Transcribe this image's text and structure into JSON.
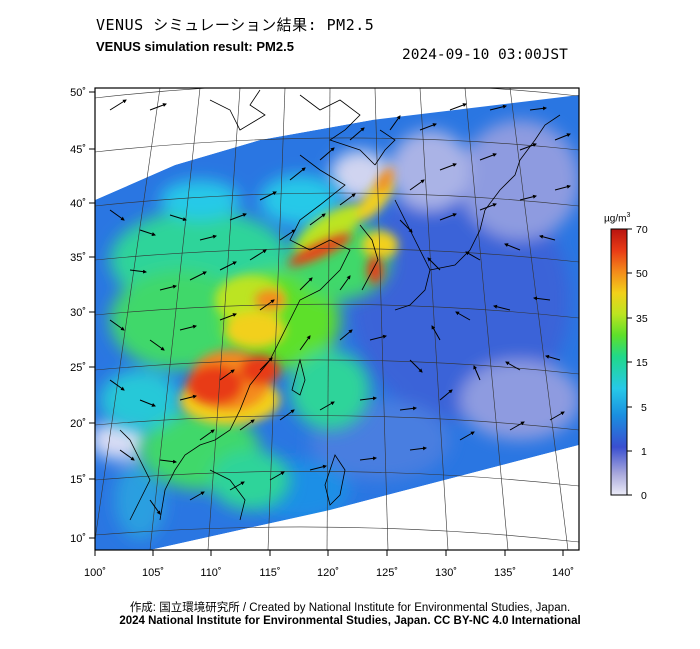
{
  "header": {
    "title_jp": "VENUS シミュレーション結果: PM2.5",
    "title_en": "VENUS simulation result: PM2.5",
    "timestamp": "2024-09-10 03:00JST"
  },
  "map": {
    "lon_ticks": [
      "100˚",
      "105˚",
      "110˚",
      "115˚",
      "120˚",
      "125˚",
      "130˚",
      "135˚",
      "140˚"
    ],
    "lat_ticks": [
      "50˚",
      "45˚",
      "40˚",
      "35˚",
      "30˚",
      "25˚",
      "20˚",
      "15˚",
      "10˚"
    ],
    "lon_range": [
      100,
      141
    ],
    "lat_range": [
      9,
      51
    ]
  },
  "colorbar": {
    "unit": "µg/m",
    "unit_sup": "3",
    "ticks": [
      "70",
      "50",
      "35",
      "15",
      "5",
      "1",
      "0"
    ],
    "colors": [
      "#e9e9f7",
      "#9b9bd8",
      "#3a4fd0",
      "#1a8fe0",
      "#27c9e8",
      "#20d88a",
      "#5de02a",
      "#bce420",
      "#f2d01a",
      "#f48a1a",
      "#e83a16",
      "#b81410"
    ]
  },
  "footer": {
    "credit_line1": "作成: 国立環境研究所 / Created by National Institute for Environmental Studies, Japan.",
    "credit_line2": "2024 National Institute for Environmental Studies, Japan. CC BY-NC 4.0 International"
  }
}
